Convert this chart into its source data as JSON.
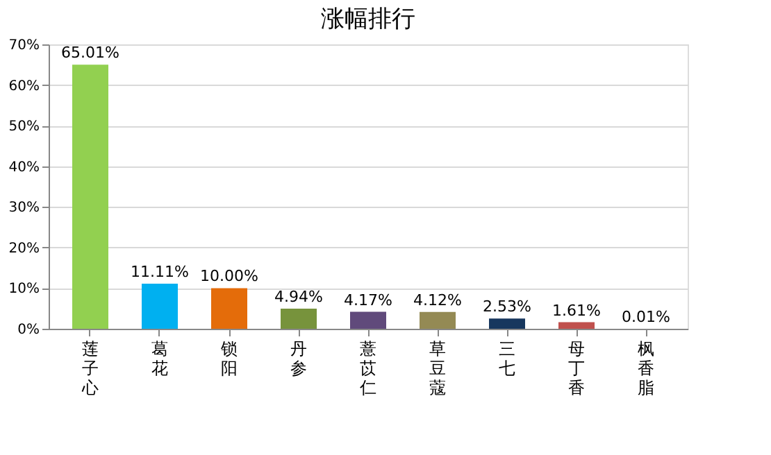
{
  "chart_data": {
    "type": "bar",
    "title": "涨幅排行",
    "categories": [
      "莲子心",
      "葛花",
      "锁阳",
      "丹参",
      "薏苡仁",
      "草豆蔻",
      "三七",
      "母丁香",
      "枫香脂"
    ],
    "values": [
      65.01,
      11.11,
      10.0,
      4.94,
      4.17,
      4.12,
      2.53,
      1.61,
      0.01
    ],
    "colors": [
      "#92d050",
      "#00b0f0",
      "#e46c0a",
      "#77933c",
      "#604a7b",
      "#948a54",
      "#17375e",
      "#c0504d",
      "#4f81bd"
    ],
    "value_labels": [
      "65.01%",
      "11.11%",
      "10.00%",
      "4.94%",
      "4.17%",
      "4.12%",
      "2.53%",
      "1.61%",
      "0.01%"
    ],
    "ylim": [
      0,
      70
    ],
    "yticks": [
      {
        "value": 0,
        "label": "0%"
      },
      {
        "value": 10,
        "label": "10%"
      },
      {
        "value": 20,
        "label": "20%"
      },
      {
        "value": 30,
        "label": "30%"
      },
      {
        "value": 40,
        "label": "40%"
      },
      {
        "value": 50,
        "label": "50%"
      },
      {
        "value": 60,
        "label": "60%"
      },
      {
        "value": 70,
        "label": "70%"
      }
    ],
    "grid": "y",
    "legend": false
  }
}
